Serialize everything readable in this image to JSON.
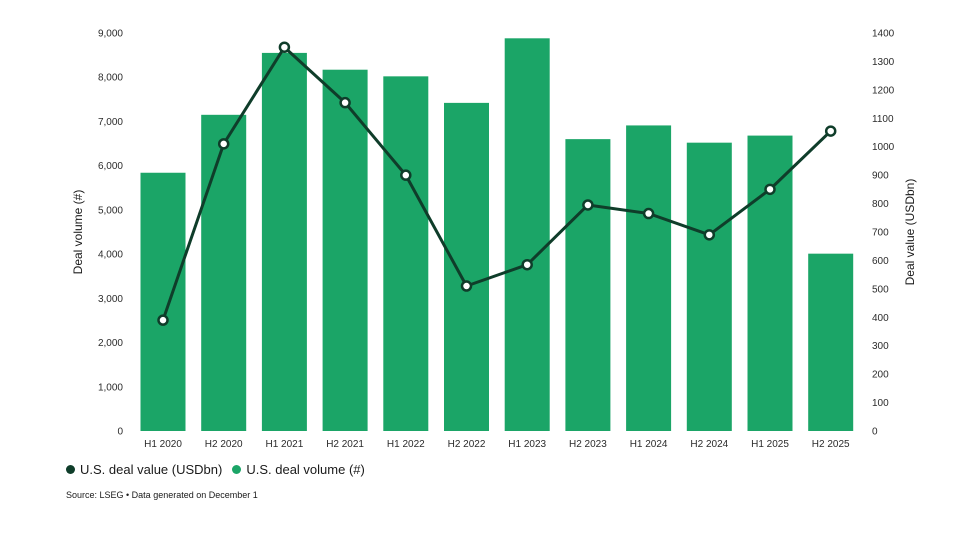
{
  "chart_data": {
    "type": "bar",
    "categories": [
      "H1 2020",
      "H2 2020",
      "H1 2021",
      "H2 2021",
      "H1 2022",
      "H2 2022",
      "H1 2023",
      "H2 2023",
      "H1 2024",
      "H2 2024",
      "H1 2025",
      "H2 2025"
    ],
    "series": [
      {
        "name": "U.S. deal volume (#)",
        "type": "bar",
        "axis": "left",
        "color": "#1ba567",
        "values": [
          5840,
          7150,
          8550,
          8170,
          8020,
          7420,
          8880,
          6600,
          6910,
          6520,
          6680,
          4010
        ]
      },
      {
        "name": "U.S. deal value (USDbn)",
        "type": "line",
        "axis": "right",
        "color": "#0f3d2a",
        "values": [
          390,
          1010,
          1350,
          1155,
          900,
          510,
          585,
          795,
          765,
          690,
          850,
          1055
        ]
      }
    ],
    "ylabel": "Deal volume (#)",
    "ylabel_right": "Deal value (USDbn)",
    "ylim": [
      0,
      9000
    ],
    "ylim_right": [
      0,
      1400
    ],
    "yticks": [
      "0",
      "1,000",
      "2,000",
      "3,000",
      "4,000",
      "5,000",
      "6,000",
      "7,000",
      "8,000",
      "9,000"
    ],
    "yticks_right": [
      "0",
      "100",
      "200",
      "300",
      "400",
      "500",
      "600",
      "700",
      "800",
      "900",
      "1000",
      "1100",
      "1200",
      "1300",
      "1400"
    ],
    "grid": false,
    "legend_position": "bottom-left"
  },
  "legend": {
    "value_label": "U.S. deal value (USDbn)",
    "volume_label": "U.S. deal volume (#)"
  },
  "source": "Source: LSEG • Data generated on December 1"
}
